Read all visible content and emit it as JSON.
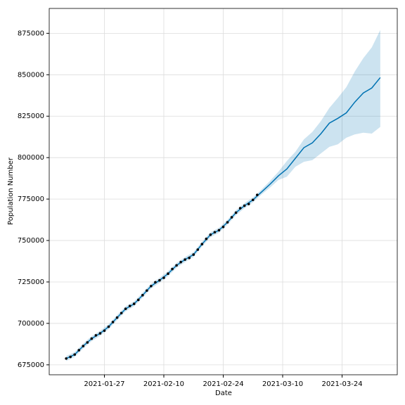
{
  "chart_data": {
    "type": "line",
    "xlabel": "Date",
    "ylabel": "Population Number",
    "observed": {
      "color": "#000000",
      "x": [
        "2021-01-18",
        "2021-01-19",
        "2021-01-20",
        "2021-01-21",
        "2021-01-22",
        "2021-01-23",
        "2021-01-24",
        "2021-01-25",
        "2021-01-26",
        "2021-01-27",
        "2021-01-28",
        "2021-01-29",
        "2021-01-30",
        "2021-01-31",
        "2021-02-01",
        "2021-02-02",
        "2021-02-03",
        "2021-02-04",
        "2021-02-05",
        "2021-02-06",
        "2021-02-07",
        "2021-02-08",
        "2021-02-09",
        "2021-02-10",
        "2021-02-11",
        "2021-02-12",
        "2021-02-13",
        "2021-02-14",
        "2021-02-15",
        "2021-02-16",
        "2021-02-17",
        "2021-02-18",
        "2021-02-19",
        "2021-02-20",
        "2021-02-21",
        "2021-02-22",
        "2021-02-23",
        "2021-02-24",
        "2021-02-25",
        "2021-02-26",
        "2021-02-27",
        "2021-02-28",
        "2021-03-01",
        "2021-03-02",
        "2021-03-03",
        "2021-03-04"
      ],
      "values": [
        678800,
        679800,
        681200,
        683800,
        686300,
        688500,
        690800,
        692800,
        694000,
        695600,
        698000,
        700800,
        703500,
        706200,
        708800,
        710500,
        711800,
        714200,
        717000,
        719800,
        722500,
        724800,
        726000,
        727500,
        730000,
        732800,
        735000,
        737000,
        738500,
        739500,
        741500,
        744500,
        747800,
        751000,
        753500,
        755000,
        756200,
        758200,
        761000,
        764000,
        766800,
        769500,
        771000,
        772000,
        774500,
        777500
      ]
    },
    "forecast": {
      "color": "#0072b2",
      "band_color": "#0072b2",
      "x": [
        "2021-01-18",
        "2021-01-20",
        "2021-01-22",
        "2021-01-24",
        "2021-01-26",
        "2021-01-28",
        "2021-01-30",
        "2021-02-01",
        "2021-02-03",
        "2021-02-05",
        "2021-02-07",
        "2021-02-09",
        "2021-02-11",
        "2021-02-13",
        "2021-02-15",
        "2021-02-17",
        "2021-02-19",
        "2021-02-21",
        "2021-02-23",
        "2021-02-25",
        "2021-02-27",
        "2021-03-01",
        "2021-03-03",
        "2021-03-05",
        "2021-03-07",
        "2021-03-09",
        "2021-03-11",
        "2021-03-13",
        "2021-03-15",
        "2021-03-17",
        "2021-03-19",
        "2021-03-21",
        "2021-03-23",
        "2021-03-25",
        "2021-03-27",
        "2021-03-29",
        "2021-03-31",
        "2021-04-02"
      ],
      "values": [
        678800,
        681200,
        686300,
        690800,
        694000,
        698000,
        703500,
        708800,
        711800,
        717000,
        722500,
        726000,
        730000,
        735000,
        738500,
        741500,
        747800,
        753500,
        756200,
        761000,
        766800,
        771000,
        774500,
        779200,
        783900,
        789000,
        793200,
        799600,
        806000,
        808900,
        814400,
        820800,
        823700,
        827000,
        833500,
        839000,
        842000,
        848300
      ],
      "upper": [
        680300,
        682700,
        687800,
        692300,
        695500,
        699500,
        705000,
        710300,
        713300,
        718500,
        724000,
        727500,
        731500,
        736500,
        740000,
        743000,
        749300,
        755000,
        757700,
        762500,
        768300,
        772500,
        776000,
        780700,
        785900,
        791500,
        798000,
        803500,
        811000,
        815500,
        822000,
        830000,
        836000,
        842500,
        852000,
        860000,
        866500,
        877000
      ],
      "lower": [
        677300,
        679700,
        684800,
        689300,
        692500,
        696500,
        702000,
        707300,
        710300,
        715500,
        721000,
        724500,
        728500,
        733500,
        737000,
        740000,
        746300,
        752000,
        754700,
        759500,
        765300,
        769500,
        773000,
        777700,
        781900,
        786500,
        788500,
        794500,
        797500,
        798500,
        802500,
        806500,
        808000,
        812000,
        814000,
        815000,
        814500,
        818500
      ]
    },
    "xlim": [
      "2021-01-14",
      "2021-04-06"
    ],
    "xticks": [
      "2021-01-27",
      "2021-02-10",
      "2021-02-24",
      "2021-03-10",
      "2021-03-24"
    ],
    "ylim": [
      669000,
      890000
    ],
    "yticks": [
      675000,
      700000,
      725000,
      750000,
      775000,
      800000,
      825000,
      850000,
      875000
    ],
    "grid": true
  }
}
